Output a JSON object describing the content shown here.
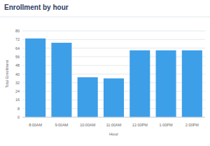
{
  "chart_data": {
    "type": "bar",
    "title": "Enrollment by hour",
    "x_label": "Hour",
    "y_label": "Total Enrollment",
    "categories": [
      "8:00AM",
      "9:00AM",
      "10:00AM",
      "11:00AM",
      "12:00PM",
      "1:00PM",
      "2:00PM"
    ],
    "values": [
      73,
      69,
      37,
      36,
      62,
      62,
      62
    ],
    "color": "#3d9fe8",
    "ylim": [
      0,
      80
    ],
    "yticks": [
      0,
      8,
      16,
      24,
      32,
      40,
      48,
      56,
      64,
      72,
      80
    ],
    "grid": true
  }
}
